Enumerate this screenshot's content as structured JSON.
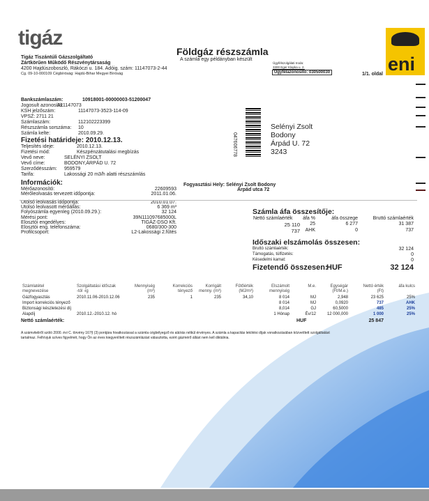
{
  "supplier": {
    "logo": "tigáz",
    "name1": "Tigáz Tiszántúli Gázszolgáltató",
    "name2": "Zártkörűen Működő Részvénytársaság",
    "address": "4200 Hajdúszoboszló, Rákóczi u. 184. Adóig. szám: 11147073-2-44",
    "registry": "Cg. 09-10-000109 Cégbíróság: Hajdú-Bihar Megyei Bíróság"
  },
  "header": {
    "title": "Földgáz részszámla",
    "subtitle": "A számla egy példányban készült",
    "office_label": "Ügyfélszolgálati Iroda:",
    "office_address": "3300 Eger Klapka u. 2.",
    "customer_id": "Ügyfélazonosító: 030500030",
    "page": "1/1. oldal",
    "brand_logo": "eni"
  },
  "details": [
    {
      "label": "Bankszámlaszám:",
      "value": "10918001-00000003-51200047",
      "bold": true
    },
    {
      "label": "Jogosult azonosító:",
      "value": "A11147073"
    },
    {
      "label": "KSH jelzőszám:",
      "value": "11147073-3523-114-09"
    },
    {
      "label": "VPSZ:",
      "value": "2711 21"
    },
    {
      "label": "Számlaszám:",
      "value": "112102223399"
    },
    {
      "label": "Részszámla sorszáma:",
      "value": "10"
    },
    {
      "label": "Számla kelte:",
      "value": "2010.09.29."
    }
  ],
  "due": {
    "label": "Fizetési határideje:",
    "value": "2010.12.13."
  },
  "details2": [
    {
      "label": "Teljesítés ideje:",
      "value": "2010.12.13."
    },
    {
      "label": "Fizetési mód:",
      "value": "Készpénzátutalási megbízás"
    },
    {
      "label": "Vevő neve:",
      "value": "SELÉNYI ZSOLT"
    },
    {
      "label": "Vevő címe:",
      "value": "BODONY,ÁRPÁD U. 72"
    },
    {
      "label": "Szerződésszám:",
      "value": "959579"
    },
    {
      "label": "Tarifa:",
      "value": "Lakossági 20 m3/h alatti részszámlás"
    }
  ],
  "info": {
    "heading": "Információk:",
    "rows": [
      {
        "label": "Mérőazonosító:",
        "value": "22609593"
      },
      {
        "label": "Mérőleolvasás tervezett időpontja:",
        "value": "2011.01.06."
      },
      {
        "label": "Utolsó leolvasás időpontja:",
        "value": "2010.01.07."
      },
      {
        "label": "Utolsó leolvasott mérőállás:",
        "value": "6 369 m³"
      },
      {
        "label": "Folyószámla egyenleg (2010.09.29.):",
        "value": "32 124"
      },
      {
        "label": "Mérési pont:",
        "value": "39N111097685000L"
      },
      {
        "label": "Elosztói engedélyes:",
        "value": "TIGÁZ-DSO Kft."
      },
      {
        "label": "Elosztói eng. telefonszáma:",
        "value": "0680/300-300"
      },
      {
        "label": "Profilcsoport:",
        "value": "L2-Lakossági 2.fűtés"
      }
    ]
  },
  "recipient": {
    "barcode_number": "047606778",
    "lines": [
      "Selényi Zsolt",
      "Bodony",
      "Árpád U. 72",
      "3243"
    ]
  },
  "consumption_place": {
    "line1": "Fogyasztási Hely: Selényi Zsolt Bodony",
    "line2": "Árpád utca 72"
  },
  "vat_summary": {
    "heading": "Számla áfa összesítője:",
    "headers": [
      "Nettó számlaérték",
      "áfa %",
      "áfa összege",
      "Bruttó számlaérték"
    ],
    "rows": [
      [
        "25 110",
        "25",
        "6 277",
        "31 387"
      ],
      [
        "737",
        "AHK",
        "0",
        "737"
      ]
    ]
  },
  "period_summary": {
    "heading": "Időszaki elszámolás összesen:",
    "rows": [
      {
        "label": "Bruttó számlaérték:",
        "value": "32 124"
      },
      {
        "label": "Támogatás, túlfizetés:",
        "value": "0"
      },
      {
        "label": "Késedelmi kamat:",
        "value": "0"
      }
    ],
    "total_label": "Fizetendő összesen:",
    "currency": "HUF",
    "total": "32 124"
  },
  "items": {
    "headers": [
      [
        "Számlatétel",
        "megnevezése"
      ],
      [
        "Szolgáltatási időszak",
        "-tól    -ig"
      ],
      [
        "Mennyiség",
        "(m³)"
      ],
      [
        "Korrekciós",
        "tényező"
      ],
      [
        "Korrigált",
        "menny. (m³)"
      ],
      [
        "Fűtőérték",
        "(MJ/m³)"
      ],
      [
        "Elszámolt",
        "mennyiség"
      ],
      [
        "M.e.",
        ""
      ],
      [
        "Egységár",
        "(Ft/M.e.)"
      ],
      [
        "Nettó érték",
        "(Ft)"
      ],
      [
        "áfa kulcs",
        ""
      ]
    ],
    "rows": [
      [
        "Gázfogyasztás",
        "2010.11.06-2010.12.06",
        "235",
        "1",
        "235",
        "34,10",
        "8 014",
        "MJ",
        "2,948",
        "23 625",
        "25%"
      ],
      [
        "Import korrekciós tényező",
        "",
        "",
        "",
        "",
        "",
        "8 014",
        "MJ",
        "0,0920",
        "737",
        "AHK"
      ],
      [
        "Biztonsági készletezési díj",
        "",
        "",
        "",
        "",
        "",
        "8,014",
        "GJ",
        "60,5000",
        "485",
        "25%"
      ],
      [
        "Alapdíj",
        "2010.12.-2010.12. hó",
        "",
        "",
        "",
        "",
        "1 Hónap",
        "Év/12",
        "12 000,000",
        "1 000",
        "25%"
      ]
    ],
    "net_label": "Nettó számlaérték:",
    "net_currency": "HUF",
    "net_total": "25 847"
  },
  "footnote": [
    "A számviteliről szóló 2000. évi C. törvény 167§ (3) pontjára hivatkozással a számla cégbélyegző és aláírás nélkül érvényes. A számla a kapacitás lekötési díjak vonatkozásában közvetített szolgáltatást",
    "tartalmaz. Felhívjuk szíves figyelmét, hogy Ön az éves kiegyenlített részszámlázást választotta, ezért gázmérő állást nem kell diktálnia."
  ],
  "colors": {
    "wave_light": "#bcd8f2",
    "wave_dark": "#3d85de",
    "eni_yellow": "#f5c400"
  }
}
